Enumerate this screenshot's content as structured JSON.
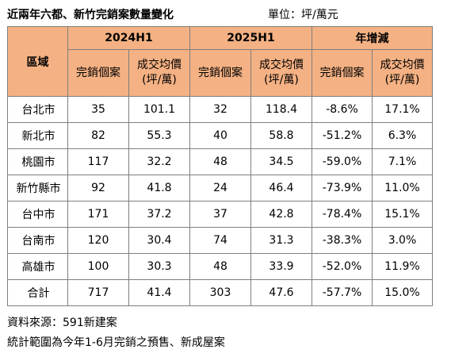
{
  "title": "近兩年六都、新竹完銷案數量變化",
  "unit": "單位：坪/萬元",
  "table": {
    "region_header": "區域",
    "groups": [
      "2024H1",
      "2025H1",
      "年增減"
    ],
    "subheaders": [
      [
        "完銷個案",
        ""
      ],
      [
        "成交均價",
        "(坪/萬)"
      ],
      [
        "完銷個案",
        ""
      ],
      [
        "成交均價",
        "(坪/萬)"
      ],
      [
        "完銷個案",
        ""
      ],
      [
        "成交均價",
        "(坪/萬)"
      ]
    ],
    "rows": [
      [
        "台北市",
        "35",
        "101.1",
        "32",
        "118.4",
        "-8.6%",
        "17.1%"
      ],
      [
        "新北市",
        "82",
        "55.3",
        "40",
        "58.8",
        "-51.2%",
        "6.3%"
      ],
      [
        "桃園市",
        "117",
        "32.2",
        "48",
        "34.5",
        "-59.0%",
        "7.1%"
      ],
      [
        "新竹縣市",
        "92",
        "41.8",
        "24",
        "46.4",
        "-73.9%",
        "11.0%"
      ],
      [
        "台中市",
        "171",
        "37.2",
        "37",
        "42.8",
        "-78.4%",
        "15.1%"
      ],
      [
        "台南市",
        "120",
        "30.4",
        "74",
        "31.3",
        "-38.3%",
        "3.0%"
      ],
      [
        "高雄市",
        "100",
        "30.3",
        "48",
        "33.9",
        "-52.0%",
        "11.9%"
      ],
      [
        "合計",
        "717",
        "41.4",
        "303",
        "47.6",
        "-57.7%",
        "15.0%"
      ]
    ]
  },
  "footer": {
    "source": "資料來源：591新建案",
    "scope": "統計範圍為今年1-6月完銷之預售、新成屋案"
  },
  "colors": {
    "header_bg": "#f4b183",
    "border": "#7f7f7f"
  }
}
